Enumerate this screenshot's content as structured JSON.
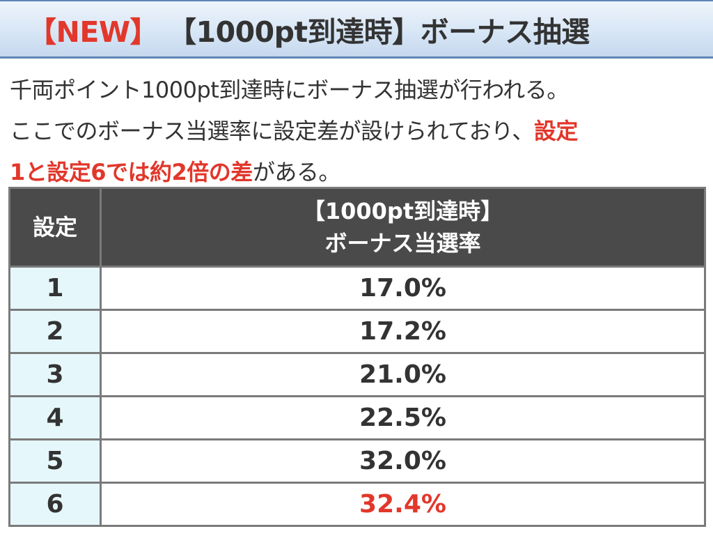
{
  "header": {
    "tag": "【NEW】",
    "title": "【1000pt到達時】ボーナス抽選"
  },
  "intro": {
    "line1": "千両ポイント1000pt到達時にボーナス抽選が行われる。",
    "line2_plain": "ここでのボーナス当選率に設定差が設けられており、",
    "line2_highlight": "設定",
    "line3_highlight": "1と設定6では約2倍の差",
    "line3_plain": "がある。"
  },
  "table": {
    "header_setting": "設定",
    "header_rate_line1": "【1000pt到達時】",
    "header_rate_line2": "ボーナス当選率",
    "rows": [
      {
        "setting": "1",
        "rate": "17.0%"
      },
      {
        "setting": "2",
        "rate": "17.2%"
      },
      {
        "setting": "3",
        "rate": "21.0%"
      },
      {
        "setting": "4",
        "rate": "22.5%"
      },
      {
        "setting": "5",
        "rate": "32.0%"
      },
      {
        "setting": "6",
        "rate": "32.4%"
      }
    ]
  },
  "colors": {
    "accent_red": "#e2372b",
    "header_border": "#5d86b5",
    "table_header_bg": "#4a4a4a",
    "setting_cell_bg": "#e6f7fb"
  }
}
